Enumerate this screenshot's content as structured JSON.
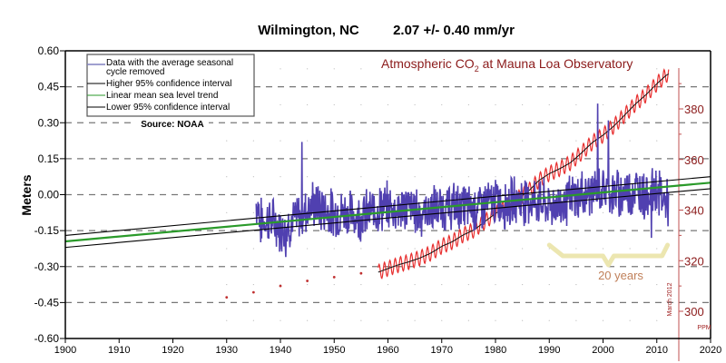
{
  "chart_data": {
    "type": "line",
    "title": "Wilmington, NC",
    "subtitle": "2.07 +/- 0.40 mm/yr",
    "ylabel": "Meters",
    "xlabel": "",
    "xlim": [
      1900,
      2020
    ],
    "ylim": [
      -0.6,
      0.6
    ],
    "x_ticks": [
      1900,
      1910,
      1920,
      1930,
      1940,
      1950,
      1960,
      1970,
      1980,
      1990,
      2000,
      2010,
      2020
    ],
    "x_tick_labels": [
      "1900",
      "1910",
      "1920",
      "1930",
      "1940",
      "1950",
      "1960",
      "1970",
      "1980",
      "1990",
      "2000",
      "2010",
      "2020"
    ],
    "y_ticks": [
      0.6,
      0.45,
      0.3,
      0.15,
      0.0,
      -0.15,
      -0.3,
      -0.45,
      -0.6
    ],
    "y_tick_labels": [
      "0.60",
      "0.45",
      "0.30",
      "0.15",
      "0.00",
      "-0.15",
      "-0.30",
      "-0.45",
      "-0.60"
    ],
    "grid": "horizontal-dashed",
    "legend_position": "top-left",
    "legend": [
      {
        "label": "Data with the average seasonal cycle removed",
        "color": "#8080c0"
      },
      {
        "label": "Higher 95% confidence interval",
        "color": "#000000"
      },
      {
        "label": "Linear mean sea level trend",
        "color": "#2a9a2a"
      },
      {
        "label": "Lower 95% confidence interval",
        "color": "#000000"
      }
    ],
    "source_label": "Source: NOAA",
    "sea_level_series": {
      "name": "Monthly MSL (seasonal cycle removed)",
      "color": "#5040b0",
      "start_year": 1935.5,
      "end_year": 2012.2,
      "trend_mm_per_yr": 2.07,
      "approx_values_m": [
        [
          1936,
          -0.12
        ],
        [
          1938,
          -0.1
        ],
        [
          1940,
          -0.14
        ],
        [
          1942,
          -0.12
        ],
        [
          1944,
          -0.08
        ],
        [
          1946,
          -0.04
        ],
        [
          1948,
          -0.06
        ],
        [
          1950,
          -0.08
        ],
        [
          1952,
          -0.07
        ],
        [
          1954,
          -0.09
        ],
        [
          1956,
          -0.08
        ],
        [
          1958,
          -0.06
        ],
        [
          1960,
          -0.05
        ],
        [
          1962,
          -0.06
        ],
        [
          1964,
          -0.05
        ],
        [
          1966,
          -0.08
        ],
        [
          1968,
          -0.06
        ],
        [
          1970,
          -0.06
        ],
        [
          1972,
          -0.05
        ],
        [
          1974,
          -0.05
        ],
        [
          1976,
          -0.06
        ],
        [
          1978,
          -0.04
        ],
        [
          1980,
          -0.03
        ],
        [
          1982,
          -0.04
        ],
        [
          1984,
          -0.02
        ],
        [
          1986,
          -0.02
        ],
        [
          1988,
          -0.03
        ],
        [
          1990,
          -0.05
        ],
        [
          1992,
          -0.04
        ],
        [
          1994,
          -0.02
        ],
        [
          1996,
          0.0
        ],
        [
          1998,
          0.01
        ],
        [
          2000,
          0.02
        ],
        [
          2002,
          0.0
        ],
        [
          2004,
          0.01
        ],
        [
          2006,
          0.02
        ],
        [
          2008,
          0.0
        ],
        [
          2010,
          0.02
        ],
        [
          2012,
          -0.04
        ]
      ],
      "notable_peaks": [
        [
          1944,
          0.22
        ],
        [
          1999,
          0.38
        ],
        [
          2001,
          0.31
        ]
      ],
      "notable_troughs": [
        [
          1941,
          -0.26
        ],
        [
          2009,
          -0.18
        ]
      ]
    },
    "trend_line": {
      "color": "#2a9a2a",
      "points": [
        [
          1900,
          -0.195
        ],
        [
          2020,
          0.05
        ]
      ]
    },
    "upper_ci": {
      "color": "#000000",
      "points": [
        [
          1900,
          -0.17
        ],
        [
          2020,
          0.075
        ]
      ]
    },
    "lower_ci": {
      "color": "#000000",
      "points": [
        [
          1900,
          -0.22
        ],
        [
          2020,
          0.025
        ]
      ]
    },
    "co2_overlay": {
      "title": "Atmospheric CO2 at Mauna Loa Observatory",
      "title_main": "Atmospheric CO",
      "title_sub": "2",
      "title_rest": " at Mauna Loa Observatory",
      "color": "#c02020",
      "axis_label": "PPM",
      "axis_note": "March 2012",
      "axis_ticks": [
        300,
        320,
        340,
        360,
        380
      ],
      "axis_tick_labels": [
        "300",
        "320",
        "340",
        "360",
        "380"
      ],
      "seasonal_amplitude_ppm": 3,
      "annual_mean_ppm": [
        [
          1958,
          315.3
        ],
        [
          1960,
          316.9
        ],
        [
          1962,
          318.4
        ],
        [
          1964,
          319.6
        ],
        [
          1966,
          321.1
        ],
        [
          1968,
          323.0
        ],
        [
          1970,
          325.7
        ],
        [
          1972,
          327.5
        ],
        [
          1974,
          330.2
        ],
        [
          1976,
          332.1
        ],
        [
          1978,
          335.4
        ],
        [
          1980,
          338.7
        ],
        [
          1982,
          341.1
        ],
        [
          1984,
          344.4
        ],
        [
          1986,
          347.2
        ],
        [
          1988,
          351.6
        ],
        [
          1990,
          354.4
        ],
        [
          1992,
          356.4
        ],
        [
          1994,
          358.8
        ],
        [
          1996,
          362.6
        ],
        [
          1998,
          366.7
        ],
        [
          2000,
          369.6
        ],
        [
          2002,
          373.2
        ],
        [
          2004,
          377.5
        ],
        [
          2006,
          381.9
        ],
        [
          2008,
          385.6
        ],
        [
          2010,
          389.9
        ],
        [
          2012,
          393.8
        ]
      ],
      "ice_core_points_ppm": [
        [
          1930,
          305.5
        ],
        [
          1935,
          307.5
        ],
        [
          1940,
          310.0
        ],
        [
          1945,
          312.0
        ],
        [
          1950,
          313.5
        ],
        [
          1955,
          315.0
        ]
      ]
    },
    "annotation": {
      "label": "20 years",
      "span_years": [
        1990,
        2012
      ],
      "color": "#c89060",
      "brace_color": "#ece6b0"
    }
  }
}
